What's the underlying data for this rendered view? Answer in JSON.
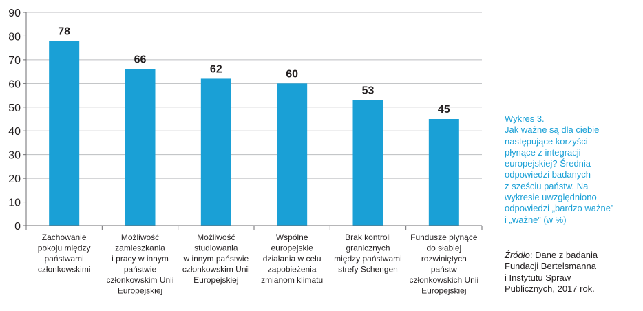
{
  "chart_data": {
    "type": "bar",
    "categories": [
      [
        "Zachowanie",
        "pokoju między",
        "państwami",
        "członkowskimi"
      ],
      [
        "Możliwość",
        "zamieszkania",
        "i pracy w innym",
        "państwie",
        "członkowskim Unii",
        "Europejskiej"
      ],
      [
        "Możliwość",
        "studiowania",
        "w innym państwie",
        "członkowskim Unii",
        "Europejskiej"
      ],
      [
        "Wspólne",
        "europejskie",
        "działania w celu",
        "zapobieżenia",
        "zmianom klimatu"
      ],
      [
        "Brak kontroli",
        "granicznych",
        "między państwami",
        "strefy Schengen"
      ],
      [
        "Fundusze płynące",
        "do słabiej",
        "rozwiniętych",
        "państw",
        "członkowskich Unii",
        "Europejskiej"
      ]
    ],
    "values": [
      78,
      66,
      62,
      60,
      53,
      45
    ],
    "ylim": [
      0,
      90
    ],
    "yticks": [
      0,
      10,
      20,
      30,
      40,
      50,
      60,
      70,
      80,
      90
    ],
    "grid": true,
    "bar_color": "#1aa0d6",
    "grid_color": "#bcbec0",
    "axis_color": "#6d6e71",
    "data_labels": true
  },
  "caption": {
    "label": "Wykres 3.",
    "lines": [
      "Jak ważne są dla ciebie",
      "następujące korzyści",
      "płynące z integracji",
      "europejskiej? Średnia",
      "odpowiedzi badanych",
      "z sześciu państw. Na",
      "wykresie uwzględniono",
      "odpowiedzi „bardzo ważne”",
      "i „ważne” (w %)"
    ]
  },
  "source": {
    "label": "Źródło",
    "first_line_rest": ": Dane z badania",
    "lines": [
      "Fundacji Bertelsmanna",
      "i Instytutu Spraw",
      "Publicznych, 2017 rok."
    ]
  },
  "colors": {
    "accent": "#1aa0d6",
    "text": "#231f20"
  }
}
